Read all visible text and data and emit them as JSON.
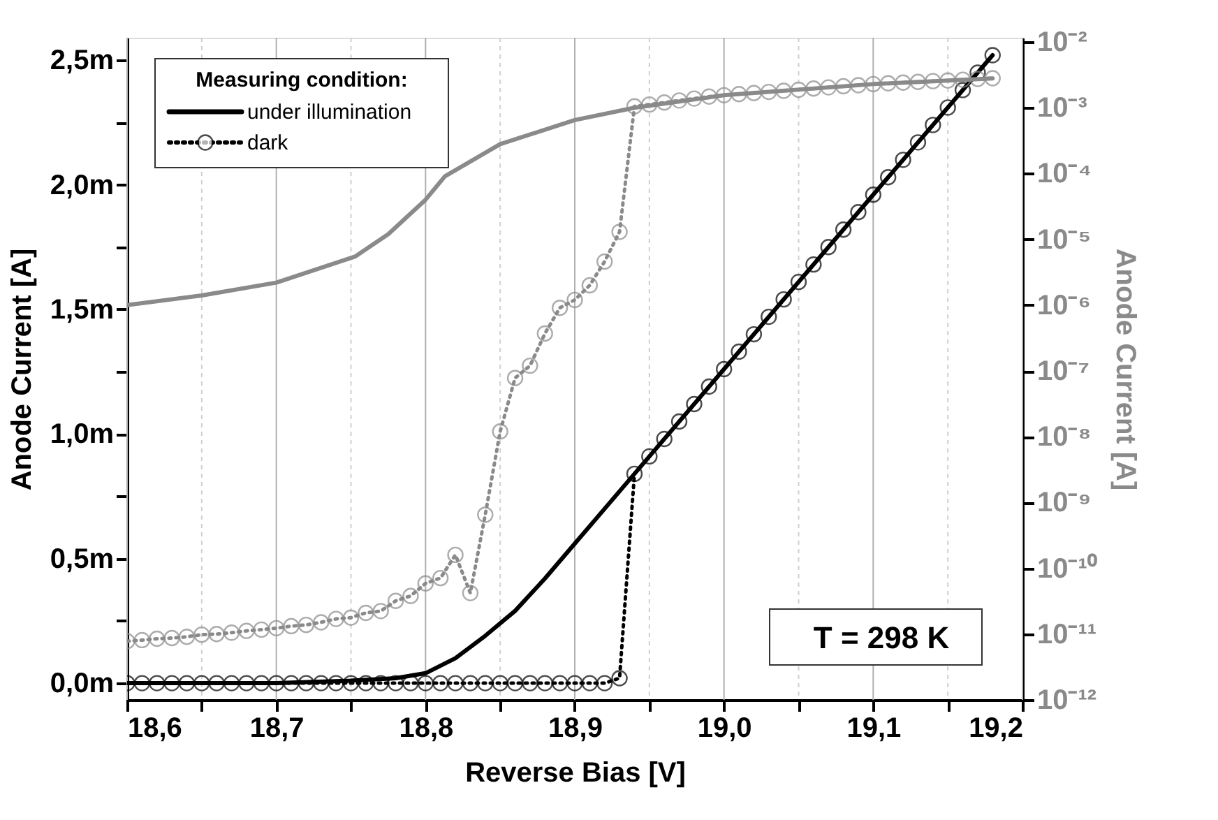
{
  "chart_data": {
    "type": "line",
    "xlabel": "Reverse Bias [V]",
    "ylabel": "Anode Current [A]",
    "y2label": "Anode Current [A]",
    "legend_title": "Measuring condition:",
    "legend": "top left",
    "grid": "x",
    "annotations": [
      "T = 298 K"
    ],
    "xlim": [
      18.6,
      19.2
    ],
    "xticks": [
      {
        "value": 18.6,
        "label": "18,6"
      },
      {
        "value": 18.65,
        "label": null
      },
      {
        "value": 18.7,
        "label": "18,7"
      },
      {
        "value": 18.75,
        "label": null
      },
      {
        "value": 18.8,
        "label": "18,8"
      },
      {
        "value": 18.85,
        "label": null
      },
      {
        "value": 18.9,
        "label": "18,9"
      },
      {
        "value": 18.95,
        "label": null
      },
      {
        "value": 19.0,
        "label": "19,0"
      },
      {
        "value": 19.05,
        "label": null
      },
      {
        "value": 19.1,
        "label": "19,1"
      },
      {
        "value": 19.15,
        "label": null
      },
      {
        "value": 19.2,
        "label": "19,2"
      }
    ],
    "ylim": [
      -0.067,
      2.59
    ],
    "yticks": [
      {
        "value": 0,
        "label": "0,0m"
      },
      {
        "value": 0.25,
        "label": null
      },
      {
        "value": 0.5,
        "label": "0,5m"
      },
      {
        "value": 0.75,
        "label": null
      },
      {
        "value": 1.0,
        "label": "1,0m"
      },
      {
        "value": 1.25,
        "label": null
      },
      {
        "value": 1.5,
        "label": "1,5m"
      },
      {
        "value": 1.75,
        "label": null
      },
      {
        "value": 2.0,
        "label": "2,0m"
      },
      {
        "value": 2.25,
        "label": null
      },
      {
        "value": 2.5,
        "label": "2,5m"
      }
    ],
    "log": "y2",
    "y2lim": [
      1e-12,
      0.0116
    ],
    "y2ticks": [
      {
        "value": 1e-12,
        "label": "10⁻¹²"
      },
      {
        "value": 1e-11,
        "label": "10⁻¹¹"
      },
      {
        "value": 1e-10,
        "label": "10⁻¹⁰"
      },
      {
        "value": 1e-09,
        "label": "10⁻⁹"
      },
      {
        "value": 1e-08,
        "label": "10⁻⁸"
      },
      {
        "value": 1e-07,
        "label": "10⁻⁷"
      },
      {
        "value": 1e-06,
        "label": "10⁻⁶"
      },
      {
        "value": 1e-05,
        "label": "10⁻⁵"
      },
      {
        "value": 0.0001,
        "label": "10⁻⁴"
      },
      {
        "value": 0.001,
        "label": "10⁻³"
      },
      {
        "value": 0.01,
        "label": "10⁻²"
      }
    ],
    "series": [
      {
        "axis": "y2",
        "color": "#8a8a8a",
        "line_style": "solid",
        "marker": "none",
        "x": [
          18.6,
          18.65,
          18.7,
          18.753,
          18.775,
          18.8,
          18.813,
          18.85,
          18.9,
          18.94,
          19.0,
          19.1,
          19.18
        ],
        "values": [
          1e-06,
          1.4e-06,
          2.2e-06,
          5.5e-06,
          1.2e-05,
          4e-05,
          9.1e-05,
          0.00028,
          0.00065,
          0.001,
          0.00155,
          0.00229,
          0.0028
        ]
      },
      {
        "axis": "y2",
        "color": "#8a8a8a",
        "line_style": "dotted",
        "marker": "circle",
        "x": [
          18.6,
          18.61,
          18.62,
          18.63,
          18.64,
          18.65,
          18.66,
          18.67,
          18.68,
          18.69,
          18.7,
          18.71,
          18.72,
          18.73,
          18.74,
          18.75,
          18.76,
          18.77,
          18.78,
          18.79,
          18.8,
          18.81,
          18.82,
          18.83,
          18.84,
          18.85,
          18.86,
          18.87,
          18.88,
          18.89,
          18.9,
          18.91,
          18.92,
          18.93,
          18.94,
          18.95,
          18.96,
          18.97,
          18.98,
          18.99,
          19.0,
          19.01,
          19.02,
          19.03,
          19.04,
          19.05,
          19.06,
          19.07,
          19.08,
          19.09,
          19.1,
          19.11,
          19.12,
          19.13,
          19.14,
          19.15,
          19.16,
          19.17,
          19.18
        ],
        "values": [
          7.8e-12,
          8.1e-12,
          8.5e-12,
          8.7e-12,
          9.1e-12,
          9.8e-12,
          1e-11,
          1.05e-11,
          1.12e-11,
          1.17e-11,
          1.23e-11,
          1.32e-11,
          1.38e-11,
          1.51e-11,
          1.7e-11,
          1.78e-11,
          2.1e-11,
          2.24e-11,
          3.2e-11,
          3.8e-11,
          5.9e-11,
          7.1e-11,
          1.6e-10,
          4.2e-11,
          6.5e-10,
          1.2e-08,
          7.8e-08,
          1.2e-07,
          3.7e-07,
          9.1e-07,
          1.2e-06,
          2e-06,
          4.6e-06,
          1.3e-05,
          0.00105,
          0.00112,
          0.0012,
          0.00129,
          0.00138,
          0.00148,
          0.00155,
          0.00161,
          0.00167,
          0.00174,
          0.00181,
          0.00188,
          0.00196,
          0.00204,
          0.00212,
          0.0022,
          0.00229,
          0.00235,
          0.00241,
          0.00247,
          0.00254,
          0.0026,
          0.00267,
          0.00274,
          0.00281
        ]
      },
      {
        "axis": "y",
        "name": "under illumination",
        "color": "#000000",
        "line_style": "solid",
        "marker": "none",
        "x": [
          18.6,
          18.7,
          18.75,
          18.78,
          18.8,
          18.82,
          18.84,
          18.86,
          18.88,
          18.9,
          18.92,
          18.94,
          19.0,
          19.1,
          19.18
        ],
        "values": [
          0,
          0,
          0.01,
          0.02,
          0.04,
          0.1,
          0.19,
          0.29,
          0.42,
          0.56,
          0.7,
          0.84,
          1.26,
          1.96,
          2.52
        ]
      },
      {
        "axis": "y",
        "name": "dark",
        "color": "#000000",
        "line_style": "dotted",
        "marker": "circle",
        "x": [
          18.6,
          18.61,
          18.62,
          18.63,
          18.64,
          18.65,
          18.66,
          18.67,
          18.68,
          18.69,
          18.7,
          18.71,
          18.72,
          18.73,
          18.74,
          18.75,
          18.76,
          18.77,
          18.78,
          18.79,
          18.8,
          18.81,
          18.82,
          18.83,
          18.84,
          18.85,
          18.86,
          18.87,
          18.88,
          18.89,
          18.9,
          18.91,
          18.92,
          18.93,
          18.94,
          18.95,
          18.96,
          18.97,
          18.98,
          18.99,
          19.0,
          19.01,
          19.02,
          19.03,
          19.04,
          19.05,
          19.06,
          19.07,
          19.08,
          19.09,
          19.1,
          19.11,
          19.12,
          19.13,
          19.14,
          19.15,
          19.16,
          19.17,
          19.18
        ],
        "values": [
          0,
          0,
          0,
          0,
          0,
          0,
          0,
          0,
          0,
          0,
          0,
          0,
          0,
          0,
          0,
          0,
          0,
          0,
          0,
          0,
          0,
          0,
          0,
          0,
          0,
          0,
          0,
          0,
          0,
          0,
          0,
          0,
          0,
          0.02,
          0.84,
          0.91,
          0.98,
          1.05,
          1.12,
          1.19,
          1.26,
          1.33,
          1.4,
          1.47,
          1.54,
          1.61,
          1.68,
          1.75,
          1.82,
          1.89,
          1.96,
          2.03,
          2.1,
          2.17,
          2.24,
          2.31,
          2.38,
          2.45,
          2.52
        ]
      }
    ]
  }
}
